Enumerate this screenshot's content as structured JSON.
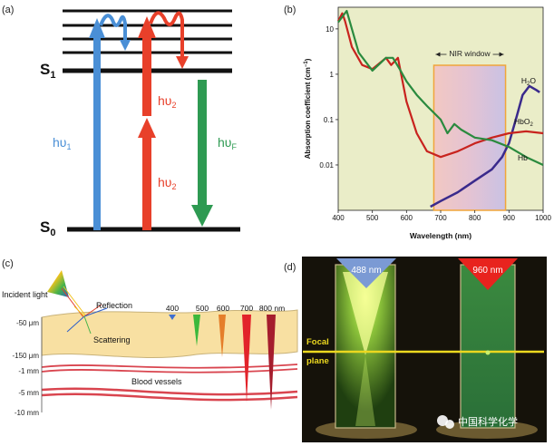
{
  "panel_labels": {
    "a": "(a)",
    "b": "(b)",
    "c": "(c)",
    "d": "(d)"
  },
  "panel_a": {
    "s1": "S",
    "s1_sub": "1",
    "s0": "S",
    "s0_sub": "0",
    "hv1": "hυ",
    "hv1_sub": "1",
    "hv2_top": "hυ",
    "hv2_top_sub": "2",
    "hv2_bottom": "hυ",
    "hv2_bottom_sub": "2",
    "hvf": "hυ",
    "hvf_sub": "F",
    "colors": {
      "blue": "#4a8fd6",
      "red": "#e8402a",
      "green": "#2e9a52"
    }
  },
  "panel_b": {
    "nir_window": "NIR window",
    "colors": {
      "H2O": "#3a2a8c",
      "HbO2": "#c8231e",
      "Hb": "#2a8a3e",
      "plot_bg": "#eaedc8",
      "window_border": "#f0a53a"
    },
    "chart_data": {
      "type": "line",
      "title": "",
      "xlabel": "Wavelength (nm)",
      "ylabel": "Absorption coefficient (cm",
      "ylabel_sup": "−1",
      "ylabel_close": ")",
      "xlim": [
        400,
        1000
      ],
      "ylim_log": [
        0.001,
        30
      ],
      "xticks": [
        400,
        500,
        600,
        700,
        800,
        900,
        1000
      ],
      "xtick_labels": [
        "400",
        "500",
        "600",
        "700",
        "800",
        "900",
        "1000"
      ],
      "yticks": [
        10,
        1,
        0.1,
        0.01
      ],
      "ytick_labels": [
        "10",
        "1",
        "0.1",
        "0.01"
      ],
      "nir_window_range": [
        680,
        890
      ],
      "series_labels": {
        "H2O": "H",
        "H2O_sub": "2",
        "H2O_end": "O",
        "HbO2": "HbO",
        "HbO2_sub": "2",
        "Hb": "Hb"
      },
      "series": [
        {
          "name": "H2O",
          "x": [
            670,
            700,
            750,
            800,
            850,
            880,
            900,
            920,
            940,
            960,
            980,
            990
          ],
          "y": [
            0.0012,
            0.0016,
            0.0025,
            0.0045,
            0.008,
            0.015,
            0.03,
            0.1,
            0.35,
            0.55,
            0.45,
            0.4
          ]
        },
        {
          "name": "HbO2",
          "x": [
            400,
            412,
            420,
            440,
            470,
            500,
            540,
            555,
            575,
            600,
            630,
            660,
            700,
            750,
            800,
            850,
            900,
            950,
            1000
          ],
          "y": [
            15,
            22,
            15,
            4,
            1.6,
            1.3,
            2.3,
            1.6,
            2.3,
            0.25,
            0.05,
            0.02,
            0.015,
            0.02,
            0.03,
            0.04,
            0.05,
            0.055,
            0.05
          ]
        },
        {
          "name": "Hb",
          "x": [
            400,
            425,
            440,
            460,
            500,
            540,
            560,
            580,
            600,
            630,
            660,
            700,
            720,
            740,
            760,
            800,
            850,
            900,
            950,
            1000
          ],
          "y": [
            14,
            25,
            10,
            3,
            1.2,
            2.3,
            2.3,
            1.3,
            0.7,
            0.35,
            0.2,
            0.1,
            0.05,
            0.08,
            0.06,
            0.04,
            0.035,
            0.025,
            0.015,
            0.01
          ]
        }
      ]
    }
  },
  "panel_c": {
    "incident_light": "Incident light",
    "reflection": "Reflection",
    "scattering": "Scattering",
    "blood_vessels": "Blood vessels",
    "depths": [
      "-50 μm",
      "-150 μm",
      "-1 mm",
      "-5 mm",
      "-10 mm"
    ],
    "wavelengths": [
      "400",
      "500",
      "600",
      "700",
      "800 nm"
    ],
    "colors": {
      "skin": "#f8e0a2",
      "vessel": "#d9454f",
      "w400": "#3f6fd0",
      "w500": "#3cb83c",
      "w600": "#e57e2a",
      "w700": "#e2232a",
      "w800": "#a51d2d"
    }
  },
  "panel_d": {
    "left_wavelength": "488 nm",
    "right_wavelength": "960 nm",
    "focal": "Focal",
    "plane": "plane",
    "watermark": "中国科学化学",
    "colors": {
      "focal_line": "#ecd81f",
      "arrow_blue": "#7b9ad4",
      "arrow_red": "#e8231e"
    }
  }
}
